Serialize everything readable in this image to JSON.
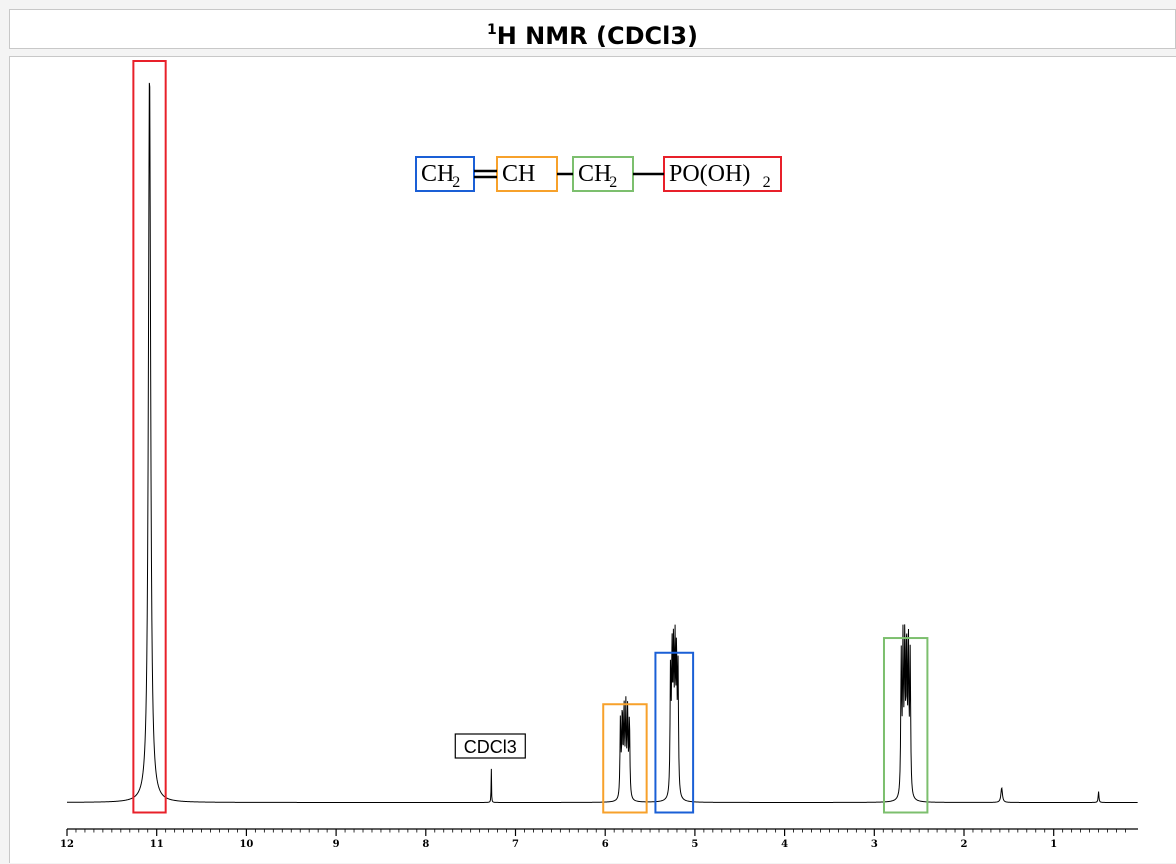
{
  "title": {
    "superscript": "1",
    "text": "H NMR (CDCl3)"
  },
  "colors": {
    "red": "#e8202a",
    "orange": "#f7a12b",
    "blue": "#1a5fd6",
    "green": "#7cbf6e",
    "black": "#000000"
  },
  "chart_data": {
    "type": "line",
    "xlim": [
      12,
      0
    ],
    "x_reversed": true,
    "ticks": [
      "12",
      "11",
      "10",
      "9",
      "8",
      "7",
      "6",
      "5",
      "4",
      "3",
      "2",
      "1"
    ],
    "y_normalized_max": 1.0,
    "peaks": [
      {
        "ppm": 11.08,
        "height": 1.0,
        "width": 0.06,
        "color": "red",
        "assignment": "PO(OH)2"
      },
      {
        "ppm": 7.27,
        "height": 0.05,
        "width": 0.01,
        "solvent": true
      },
      {
        "ppm": 5.78,
        "height": 0.12,
        "width": 0.12,
        "color": "orange",
        "assignment": "CH"
      },
      {
        "ppm": 5.23,
        "height": 0.19,
        "width": 0.1,
        "color": "blue",
        "assignment": "CH2="
      },
      {
        "ppm": 2.65,
        "height": 0.21,
        "width": 0.12,
        "color": "green",
        "assignment": "CH2"
      },
      {
        "ppm": 1.58,
        "height": 0.02,
        "width": 0.04
      },
      {
        "ppm": 0.5,
        "height": 0.015,
        "width": 0.02
      }
    ],
    "solvent_label": "CDCl3",
    "structure": {
      "groups": [
        {
          "text": "CH",
          "sub": "2",
          "color": "blue"
        },
        {
          "text": "CH",
          "sub": "",
          "color": "orange"
        },
        {
          "text": "CH",
          "sub": "2",
          "color": "green"
        },
        {
          "text": "PO(OH)",
          "sub": "2",
          "color": "red"
        }
      ],
      "bonds": [
        "double",
        "single",
        "single"
      ]
    }
  }
}
